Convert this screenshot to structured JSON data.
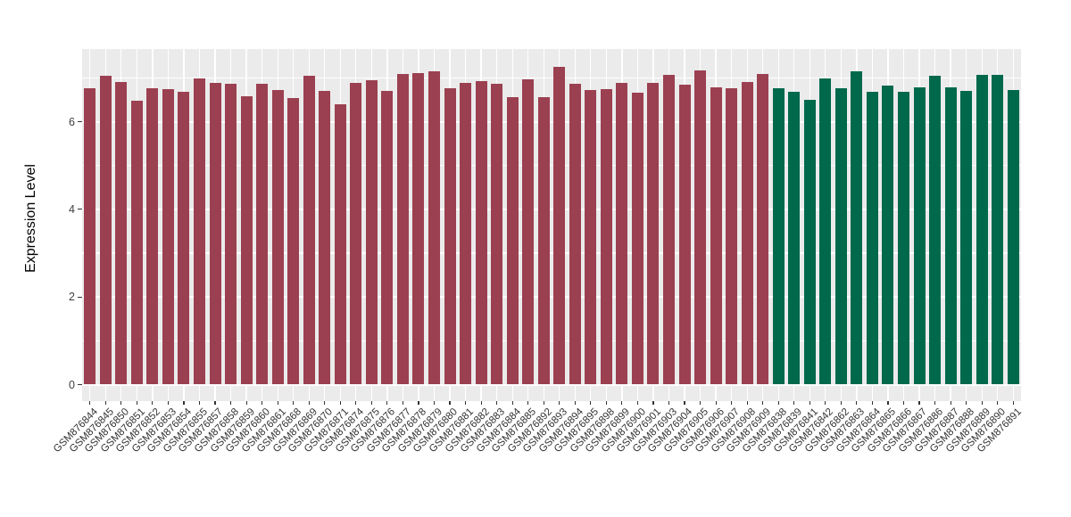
{
  "chart_data": {
    "type": "bar",
    "title": "",
    "xlabel": "",
    "ylabel": "Expression Level",
    "yticks": [
      0,
      2,
      4,
      6
    ],
    "ylim": [
      -0.4,
      7.66
    ],
    "grid": "white major gridlines at 0/2/4/6, minor at 1/3/5/7, vertical line at each bar center",
    "legend_position": "none",
    "panel_background": "#EBEBEB",
    "palette": {
      "group1": "#9B4050",
      "group2": "#00694C"
    },
    "bars": [
      {
        "label": "GSM876844",
        "value": 6.77,
        "group": "group1"
      },
      {
        "label": "GSM876845",
        "value": 7.06,
        "group": "group1"
      },
      {
        "label": "GSM876850",
        "value": 6.91,
        "group": "group1"
      },
      {
        "label": "GSM876851",
        "value": 6.49,
        "group": "group1"
      },
      {
        "label": "GSM876852",
        "value": 6.77,
        "group": "group1"
      },
      {
        "label": "GSM876853",
        "value": 6.74,
        "group": "group1"
      },
      {
        "label": "GSM876854",
        "value": 6.68,
        "group": "group1"
      },
      {
        "label": "GSM876855",
        "value": 6.98,
        "group": "group1"
      },
      {
        "label": "GSM876857",
        "value": 6.88,
        "group": "group1"
      },
      {
        "label": "GSM876858",
        "value": 6.86,
        "group": "group1"
      },
      {
        "label": "GSM876859",
        "value": 6.58,
        "group": "group1"
      },
      {
        "label": "GSM876860",
        "value": 6.87,
        "group": "group1"
      },
      {
        "label": "GSM876861",
        "value": 6.73,
        "group": "group1"
      },
      {
        "label": "GSM876868",
        "value": 6.54,
        "group": "group1"
      },
      {
        "label": "GSM876869",
        "value": 7.06,
        "group": "group1"
      },
      {
        "label": "GSM876870",
        "value": 6.7,
        "group": "group1"
      },
      {
        "label": "GSM876871",
        "value": 6.39,
        "group": "group1"
      },
      {
        "label": "GSM876874",
        "value": 6.88,
        "group": "group1"
      },
      {
        "label": "GSM876875",
        "value": 6.94,
        "group": "group1"
      },
      {
        "label": "GSM876876",
        "value": 6.71,
        "group": "group1"
      },
      {
        "label": "GSM876877",
        "value": 7.09,
        "group": "group1"
      },
      {
        "label": "GSM876878",
        "value": 7.12,
        "group": "group1"
      },
      {
        "label": "GSM876879",
        "value": 7.16,
        "group": "group1"
      },
      {
        "label": "GSM876880",
        "value": 6.76,
        "group": "group1"
      },
      {
        "label": "GSM876881",
        "value": 6.88,
        "group": "group1"
      },
      {
        "label": "GSM876882",
        "value": 6.93,
        "group": "group1"
      },
      {
        "label": "GSM876883",
        "value": 6.86,
        "group": "group1"
      },
      {
        "label": "GSM876884",
        "value": 6.57,
        "group": "group1"
      },
      {
        "label": "GSM876885",
        "value": 6.96,
        "group": "group1"
      },
      {
        "label": "GSM876892",
        "value": 6.56,
        "group": "group1"
      },
      {
        "label": "GSM876893",
        "value": 7.26,
        "group": "group1"
      },
      {
        "label": "GSM876894",
        "value": 6.86,
        "group": "group1"
      },
      {
        "label": "GSM876895",
        "value": 6.72,
        "group": "group1"
      },
      {
        "label": "GSM876898",
        "value": 6.74,
        "group": "group1"
      },
      {
        "label": "GSM876899",
        "value": 6.88,
        "group": "group1"
      },
      {
        "label": "GSM876900",
        "value": 6.66,
        "group": "group1"
      },
      {
        "label": "GSM876901",
        "value": 6.89,
        "group": "group1"
      },
      {
        "label": "GSM876903",
        "value": 7.08,
        "group": "group1"
      },
      {
        "label": "GSM876904",
        "value": 6.84,
        "group": "group1"
      },
      {
        "label": "GSM876905",
        "value": 7.18,
        "group": "group1"
      },
      {
        "label": "GSM876906",
        "value": 6.79,
        "group": "group1"
      },
      {
        "label": "GSM876907",
        "value": 6.77,
        "group": "group1"
      },
      {
        "label": "GSM876908",
        "value": 6.91,
        "group": "group1"
      },
      {
        "label": "GSM876909",
        "value": 7.1,
        "group": "group1"
      },
      {
        "label": "GSM876838",
        "value": 6.77,
        "group": "group2"
      },
      {
        "label": "GSM876839",
        "value": 6.68,
        "group": "group2"
      },
      {
        "label": "GSM876841",
        "value": 6.51,
        "group": "group2"
      },
      {
        "label": "GSM876842",
        "value": 6.98,
        "group": "group2"
      },
      {
        "label": "GSM876862",
        "value": 6.76,
        "group": "group2"
      },
      {
        "label": "GSM876863",
        "value": 7.16,
        "group": "group2"
      },
      {
        "label": "GSM876864",
        "value": 6.69,
        "group": "group2"
      },
      {
        "label": "GSM876865",
        "value": 6.82,
        "group": "group2"
      },
      {
        "label": "GSM876866",
        "value": 6.68,
        "group": "group2"
      },
      {
        "label": "GSM876867",
        "value": 6.79,
        "group": "group2"
      },
      {
        "label": "GSM876886",
        "value": 7.06,
        "group": "group2"
      },
      {
        "label": "GSM876887",
        "value": 6.78,
        "group": "group2"
      },
      {
        "label": "GSM876888",
        "value": 6.71,
        "group": "group2"
      },
      {
        "label": "GSM876889",
        "value": 7.08,
        "group": "group2"
      },
      {
        "label": "GSM876890",
        "value": 7.08,
        "group": "group2"
      },
      {
        "label": "GSM876891",
        "value": 6.72,
        "group": "group2"
      }
    ]
  },
  "colors": {
    "background": "#FFFFFF",
    "panel": "#EBEBEB",
    "gridline": "#FFFFFF",
    "tick_mark": "#333333",
    "axis_text": "#404040",
    "axis_title": "#000000",
    "bar_red": "#9B4050",
    "bar_green": "#00694C"
  }
}
